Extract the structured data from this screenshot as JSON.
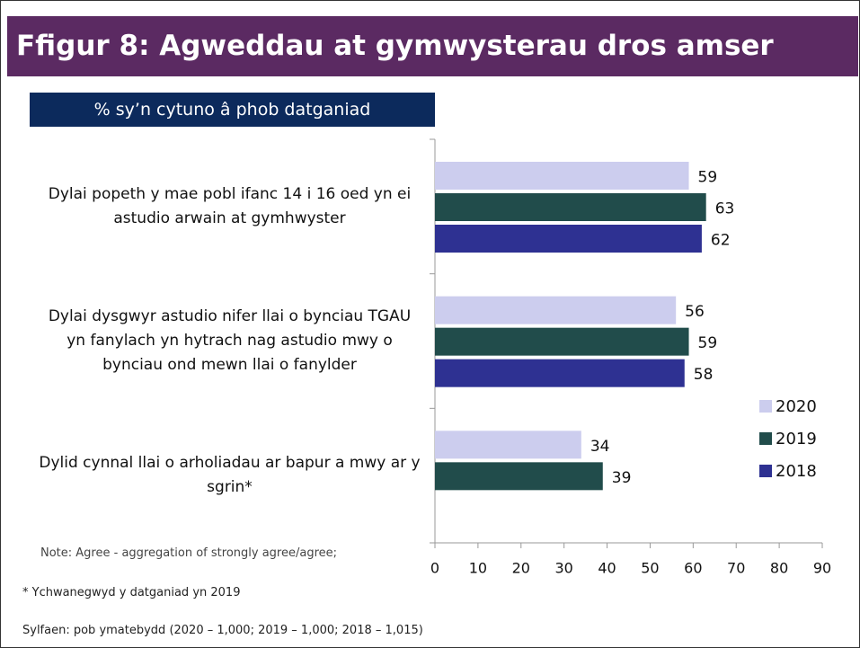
{
  "chart_data": {
    "type": "bar",
    "orientation": "horizontal",
    "title": "Ffigur 8: Agweddau at gymwysterau dros amser",
    "subtitle": "% sy’n cytuno â phob datganiad",
    "categories": [
      "Dylai popeth y mae pobl ifanc 14 i 16 oed yn ei astudio arwain at gymhwyster",
      "Dylai dysgwyr astudio nifer llai o bynciau TGAU yn fanylach yn hytrach nag astudio mwy o bynciau ond mewn llai o fanylder",
      "Dylid cynnal llai o arholiadau ar bapur a mwy ar y sgrin*"
    ],
    "series": [
      {
        "name": "2020",
        "color": "#cccdee",
        "values": [
          59,
          56,
          34
        ]
      },
      {
        "name": "2019",
        "color": "#214c4b",
        "values": [
          63,
          59,
          39
        ]
      },
      {
        "name": "2018",
        "color": "#2e3192",
        "values": [
          62,
          58,
          null
        ]
      }
    ],
    "xlim": [
      0,
      90
    ],
    "xticks": [
      0,
      10,
      20,
      30,
      40,
      50,
      60,
      70,
      80,
      90
    ],
    "legend": "right",
    "notes": [
      "Note: Agree - aggregation of strongly agree/agree;",
      "* Ychwanegwyd y datganiad yn 2019",
      "Sylfaen: pob ymatebydd (2020 – 1,000;  2019 – 1,000; 2018 – 1,015)"
    ]
  }
}
